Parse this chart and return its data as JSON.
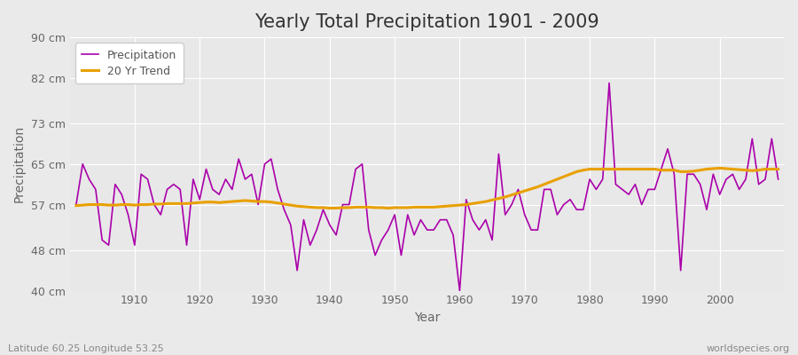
{
  "title": "Yearly Total Precipitation 1901 - 2009",
  "xlabel": "Year",
  "ylabel": "Precipitation",
  "lat_lon_label": "Latitude 60.25 Longitude 53.25",
  "watermark": "worldspecies.org",
  "years": [
    1901,
    1902,
    1903,
    1904,
    1905,
    1906,
    1907,
    1908,
    1909,
    1910,
    1911,
    1912,
    1913,
    1914,
    1915,
    1916,
    1917,
    1918,
    1919,
    1920,
    1921,
    1922,
    1923,
    1924,
    1925,
    1926,
    1927,
    1928,
    1929,
    1930,
    1931,
    1932,
    1933,
    1934,
    1935,
    1936,
    1937,
    1938,
    1939,
    1940,
    1941,
    1942,
    1943,
    1944,
    1945,
    1946,
    1947,
    1948,
    1949,
    1950,
    1951,
    1952,
    1953,
    1954,
    1955,
    1956,
    1957,
    1958,
    1959,
    1960,
    1961,
    1962,
    1963,
    1964,
    1965,
    1966,
    1967,
    1968,
    1969,
    1970,
    1971,
    1972,
    1973,
    1974,
    1975,
    1976,
    1977,
    1978,
    1979,
    1980,
    1981,
    1982,
    1983,
    1984,
    1985,
    1986,
    1987,
    1988,
    1989,
    1990,
    1991,
    1992,
    1993,
    1994,
    1995,
    1996,
    1997,
    1998,
    1999,
    2000,
    2001,
    2002,
    2003,
    2004,
    2005,
    2006,
    2007,
    2008,
    2009
  ],
  "precip": [
    57,
    65,
    62,
    60,
    50,
    49,
    61,
    59,
    55,
    49,
    63,
    62,
    57,
    55,
    60,
    61,
    60,
    49,
    62,
    58,
    64,
    60,
    59,
    62,
    60,
    66,
    62,
    63,
    57,
    65,
    66,
    60,
    56,
    53,
    44,
    54,
    49,
    52,
    56,
    53,
    51,
    57,
    57,
    64,
    65,
    52,
    47,
    50,
    52,
    55,
    47,
    55,
    51,
    54,
    52,
    52,
    54,
    54,
    51,
    40,
    58,
    54,
    52,
    54,
    50,
    67,
    55,
    57,
    60,
    55,
    52,
    52,
    60,
    60,
    55,
    57,
    58,
    56,
    56,
    62,
    60,
    62,
    81,
    61,
    60,
    59,
    61,
    57,
    60,
    60,
    64,
    68,
    63,
    44,
    63,
    63,
    61,
    56,
    63,
    59,
    62,
    63,
    60,
    62,
    70,
    61,
    62,
    70,
    62
  ],
  "trend": [
    56.8,
    56.9,
    57.0,
    57.0,
    57.0,
    56.9,
    56.9,
    57.0,
    57.0,
    56.9,
    57.0,
    57.0,
    57.1,
    57.1,
    57.2,
    57.2,
    57.2,
    57.2,
    57.3,
    57.4,
    57.5,
    57.5,
    57.4,
    57.5,
    57.6,
    57.7,
    57.8,
    57.7,
    57.6,
    57.6,
    57.5,
    57.3,
    57.1,
    56.9,
    56.7,
    56.6,
    56.5,
    56.4,
    56.4,
    56.3,
    56.3,
    56.4,
    56.4,
    56.5,
    56.5,
    56.5,
    56.4,
    56.4,
    56.3,
    56.4,
    56.4,
    56.4,
    56.5,
    56.5,
    56.5,
    56.5,
    56.6,
    56.7,
    56.8,
    56.9,
    57.0,
    57.2,
    57.4,
    57.6,
    57.9,
    58.2,
    58.5,
    58.9,
    59.3,
    59.7,
    60.1,
    60.5,
    61.0,
    61.5,
    62.0,
    62.5,
    63.0,
    63.5,
    63.8,
    64.0,
    64.0,
    64.0,
    64.0,
    64.0,
    64.0,
    64.0,
    64.0,
    64.0,
    64.0,
    64.0,
    63.8,
    63.8,
    63.8,
    63.5,
    63.5,
    63.6,
    63.8,
    64.0,
    64.1,
    64.2,
    64.1,
    64.0,
    63.9,
    63.8,
    63.7,
    63.8,
    64.0,
    64.0,
    64.0
  ],
  "precip_color": "#AA00AA",
  "trend_color": "#E8A000",
  "bg_color": "#EAEAEA",
  "plot_bg_color": "#E8E8E8",
  "grid_color": "#FFFFFF",
  "ylim": [
    40,
    90
  ],
  "yticks": [
    40,
    48,
    57,
    65,
    73,
    82,
    90
  ],
  "ytick_labels": [
    "40 cm",
    "48 cm",
    "57 cm",
    "65 cm",
    "73 cm",
    "82 cm",
    "90 cm"
  ],
  "xlim_min": 1900,
  "xlim_max": 2010,
  "xticks": [
    1910,
    1920,
    1930,
    1940,
    1950,
    1960,
    1970,
    1980,
    1990,
    2000
  ],
  "title_fontsize": 15,
  "axis_label_fontsize": 10,
  "tick_fontsize": 9,
  "legend_fontsize": 9,
  "annotation_fontsize": 8
}
